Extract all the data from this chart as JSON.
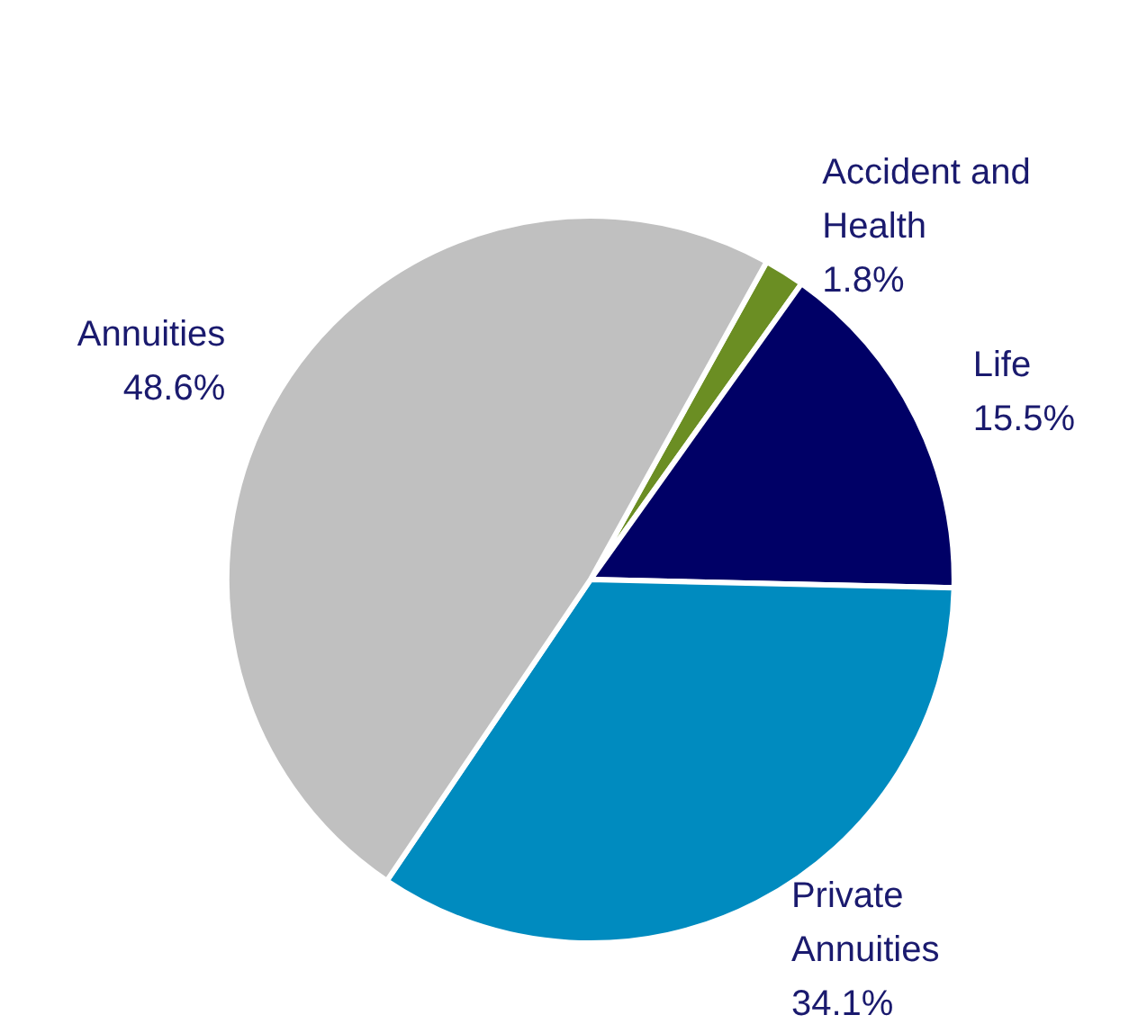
{
  "chart_data": {
    "type": "pie",
    "categories": [
      "Accident and Health",
      "Life",
      "Private Annuities",
      "Annuities"
    ],
    "values": [
      1.8,
      15.5,
      34.1,
      48.6
    ],
    "colors": [
      "#6b8e23",
      "#000066",
      "#008bbf",
      "#c0c0c0"
    ],
    "value_labels": [
      "1.8%",
      "15.5%",
      "34.1%",
      "48.6%"
    ]
  }
}
